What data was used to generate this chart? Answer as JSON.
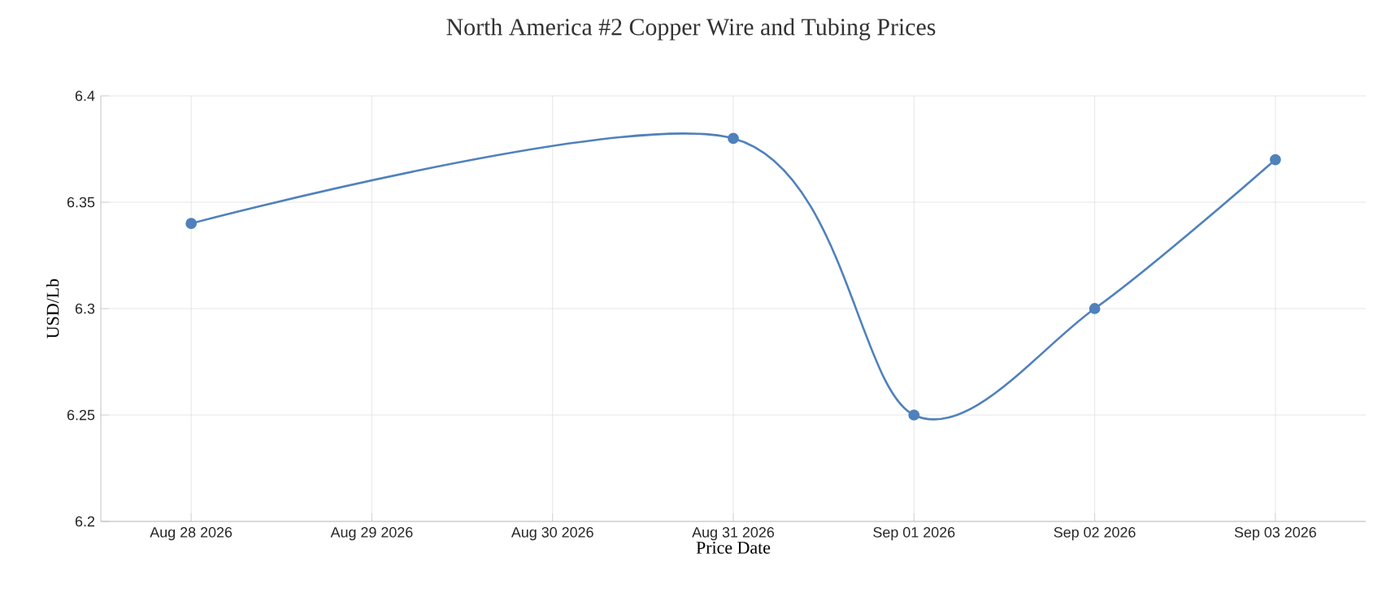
{
  "chart_data": {
    "type": "line",
    "title": "North America #2 Copper Wire and Tubing Prices",
    "xlabel": "Price Date",
    "ylabel": "USD/Lb",
    "x": [
      "2026-08-28",
      "2026-08-31",
      "2026-09-01",
      "2026-09-02",
      "2026-09-03"
    ],
    "series": [
      {
        "color": "#4f81bc",
        "values": [
          6.34,
          6.38,
          6.25,
          6.3,
          6.37
        ]
      }
    ],
    "xlim": [
      "2026-08-27T12:00",
      "2026-09-03T12:00"
    ],
    "xticks": [
      {
        "value": "2026-08-28",
        "label": "Aug 28 2026"
      },
      {
        "value": "2026-08-29",
        "label": "Aug 29 2026"
      },
      {
        "value": "2026-08-30",
        "label": "Aug 30 2026"
      },
      {
        "value": "2026-08-31",
        "label": "Aug 31 2026"
      },
      {
        "value": "2026-09-01",
        "label": "Sep 01 2026"
      },
      {
        "value": "2026-09-02",
        "label": "Sep 02 2026"
      },
      {
        "value": "2026-09-03",
        "label": "Sep 03 2026"
      }
    ],
    "ylim": [
      6.2,
      6.4
    ],
    "yticks": [
      6.2,
      6.25,
      6.3,
      6.35,
      6.4
    ],
    "grid": true,
    "marker": "circle",
    "line_style": "solid"
  }
}
